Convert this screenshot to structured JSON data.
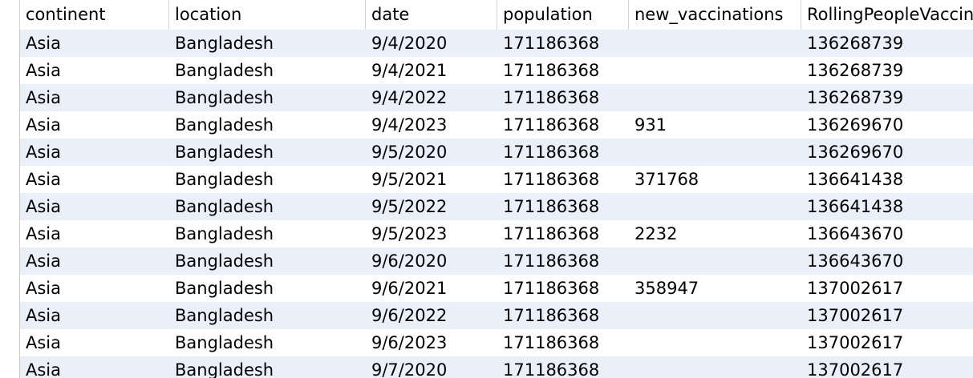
{
  "columns": [
    "continent",
    "location",
    "date",
    "population",
    "new_vaccinations",
    "RollingPeopleVaccin"
  ],
  "rows": [
    [
      "Asia",
      "Bangladesh",
      "9/4/2020",
      "171186368",
      "",
      "136268739"
    ],
    [
      "Asia",
      "Bangladesh",
      "9/4/2021",
      "171186368",
      "",
      "136268739"
    ],
    [
      "Asia",
      "Bangladesh",
      "9/4/2022",
      "171186368",
      "",
      "136268739"
    ],
    [
      "Asia",
      "Bangladesh",
      "9/4/2023",
      "171186368",
      "931",
      "136269670"
    ],
    [
      "Asia",
      "Bangladesh",
      "9/5/2020",
      "171186368",
      "",
      "136269670"
    ],
    [
      "Asia",
      "Bangladesh",
      "9/5/2021",
      "171186368",
      "371768",
      "136641438"
    ],
    [
      "Asia",
      "Bangladesh",
      "9/5/2022",
      "171186368",
      "",
      "136641438"
    ],
    [
      "Asia",
      "Bangladesh",
      "9/5/2023",
      "171186368",
      "2232",
      "136643670"
    ],
    [
      "Asia",
      "Bangladesh",
      "9/6/2020",
      "171186368",
      "",
      "136643670"
    ],
    [
      "Asia",
      "Bangladesh",
      "9/6/2021",
      "171186368",
      "358947",
      "137002617"
    ],
    [
      "Asia",
      "Bangladesh",
      "9/6/2022",
      "171186368",
      "",
      "137002617"
    ],
    [
      "Asia",
      "Bangladesh",
      "9/6/2023",
      "171186368",
      "",
      "137002617"
    ],
    [
      "Asia",
      "Bangladesh",
      "9/7/2020",
      "171186368",
      "",
      "137002617"
    ]
  ],
  "colors": {
    "row_alt_background": "#eaf0fa",
    "header_border": "#c9c9c9"
  }
}
